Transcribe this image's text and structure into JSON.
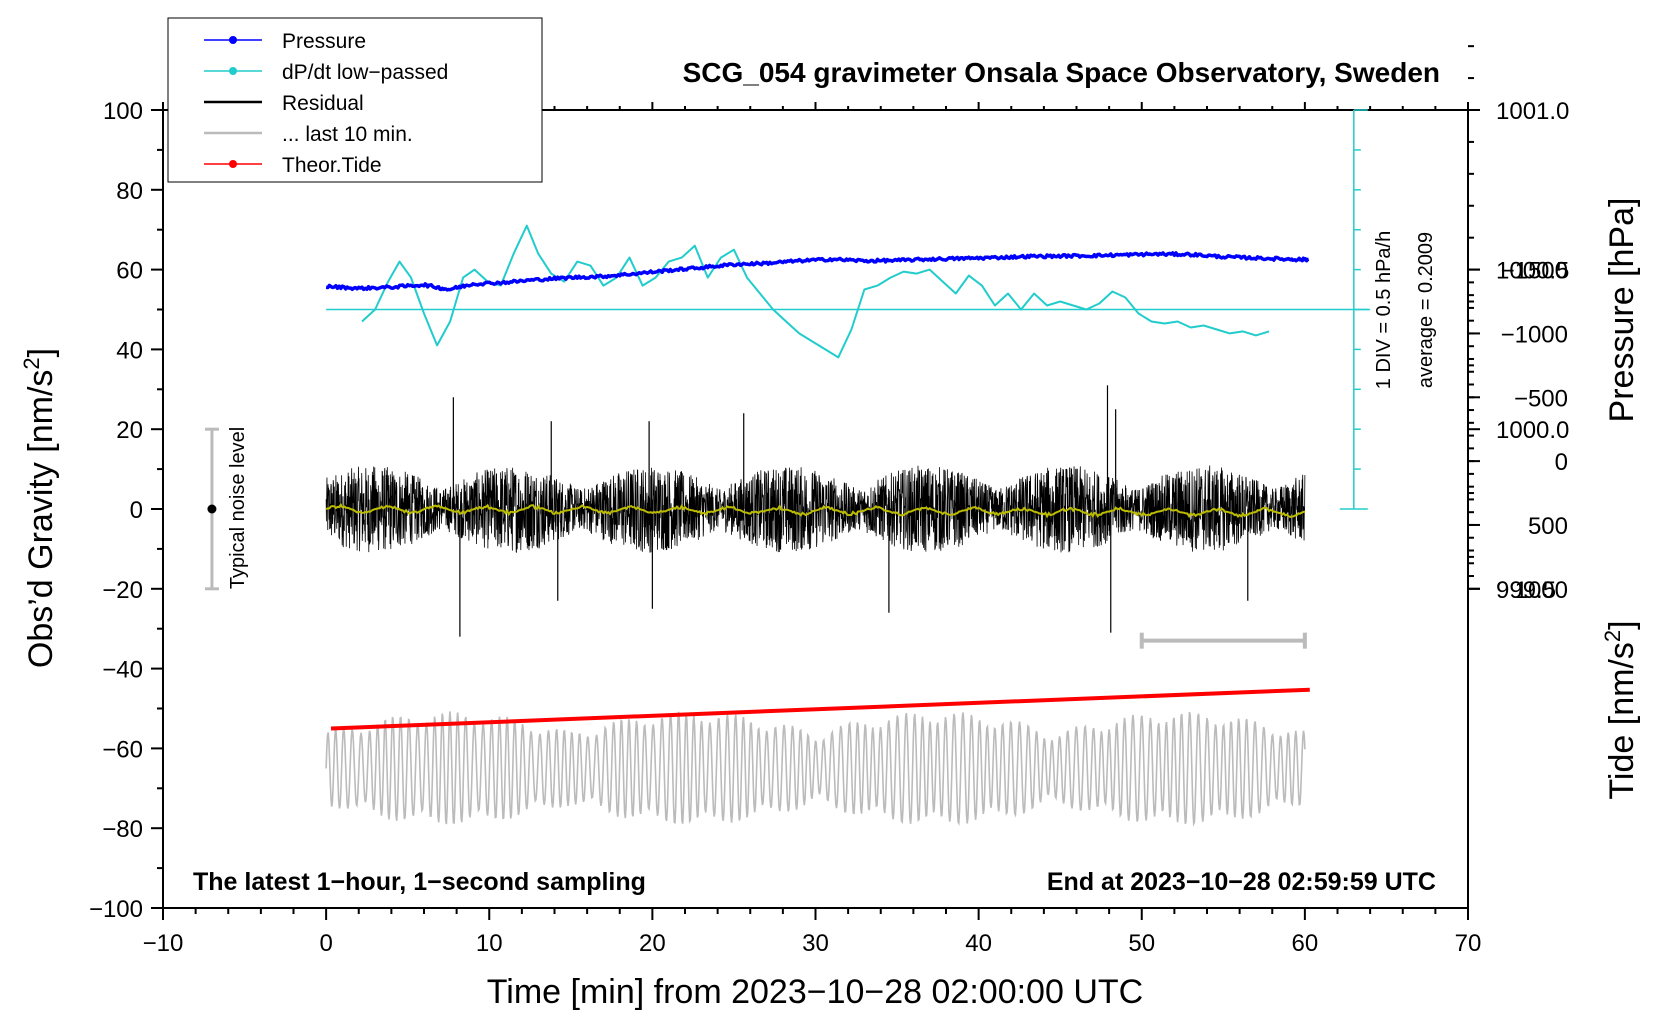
{
  "chart_data": {
    "type": "line",
    "title": "SCG_054 gravimeter Onsala Space Observatory, Sweden",
    "xlabel": "Time [min] from 2023−10−28 02:00:00 UTC",
    "ylabel_left": "Obs’d Gravity [nm/s",
    "ylabel_left_sup": "2",
    "ylabel_left_end": "]",
    "ylabel_right_top": "Pressure [hPa]",
    "ylabel_right_bottom": "Tide [nm/s",
    "ylabel_right_bottom_sup": "2",
    "ylabel_right_bottom_end": "]",
    "xlim": [
      -10,
      70
    ],
    "ylim": [
      -100,
      100
    ],
    "x_ticks": [
      -10,
      0,
      10,
      20,
      30,
      40,
      50,
      60,
      70
    ],
    "x_tick_labels": [
      "−10",
      "0",
      "10",
      "20",
      "30",
      "40",
      "50",
      "60",
      "70"
    ],
    "y_ticks": [
      -100,
      -80,
      -60,
      -40,
      -20,
      0,
      20,
      40,
      60,
      80,
      100
    ],
    "y_tick_labels": [
      "−100",
      "−80",
      "−60",
      "−40",
      "−20",
      "0",
      "20",
      "40",
      "60",
      "80",
      "100"
    ],
    "pressure_axis": {
      "ticks": [
        999.5,
        1000.0,
        1000.5,
        1001.0
      ],
      "tick_labels": [
        "999.5",
        "1000.0",
        "1000.5",
        "1001.0"
      ]
    },
    "tide_axis": {
      "ticks": [
        -1500,
        -1000,
        -500,
        0,
        500,
        1000
      ],
      "tick_labels": [
        "−1500",
        "−1000",
        "−500",
        "0",
        "500",
        "1000"
      ]
    },
    "legend": {
      "placement": "top-left",
      "entries": [
        {
          "label": "Pressure",
          "color": "#0000ff",
          "marker": true
        },
        {
          "label": "dP/dt low−passed",
          "color": "#22cccc",
          "marker": true
        },
        {
          "label": "Residual",
          "color": "#000000",
          "marker": false
        },
        {
          "label": "... last 10 min.",
          "color": "#bbbbbb",
          "marker": false
        },
        {
          "label": "Theor.Tide",
          "color": "#ff0000",
          "marker": true
        }
      ]
    },
    "annotations": {
      "bottom_left": "The latest 1−hour, 1−second sampling",
      "bottom_right": "End at 2023−10−28 02:59:59 UTC",
      "noise": "Typical noise level",
      "div": "1 DIV = 0.5 hPa/h",
      "average": "average = 0.2009"
    },
    "noise_bar": {
      "x": -7,
      "center": 0,
      "half_range": 20
    },
    "last10_bar": {
      "x_start": 50,
      "x_end": 60,
      "y": -33
    },
    "dpdt_scale": {
      "x": 63,
      "y_bottom": 0,
      "y_top": 100,
      "baseline_y": 50,
      "baseline_x_start": 0,
      "baseline_x_end": 64
    },
    "series": [
      {
        "name": "Pressure",
        "color": "#0000ff",
        "x": [
          0,
          2,
          4,
          6,
          7.5,
          9,
          11,
          13,
          15,
          17,
          19,
          21,
          23,
          25,
          27,
          29,
          31,
          33,
          35,
          37,
          39,
          41,
          43,
          45,
          47,
          49,
          51,
          53,
          55,
          57,
          59,
          60.3
        ],
        "y": [
          55.8,
          55.3,
          55.6,
          56.2,
          55.0,
          56.4,
          56.8,
          57.5,
          58.0,
          58.3,
          59.0,
          59.8,
          60.5,
          61.3,
          61.6,
          62.2,
          62.6,
          62.2,
          62.3,
          62.6,
          62.8,
          63.0,
          63.3,
          63.4,
          63.5,
          63.7,
          63.9,
          63.8,
          63.2,
          62.9,
          62.6,
          62.5
        ]
      },
      {
        "name": "dP/dt low−passed",
        "color": "#22cccc",
        "x": [
          2.2,
          3,
          3.8,
          4.5,
          5.2,
          6,
          6.8,
          7.6,
          8.4,
          9.1,
          9.9,
          10.7,
          11.5,
          12.3,
          13,
          13.8,
          14.6,
          15.4,
          16.2,
          17,
          17.8,
          18.6,
          19.4,
          20.2,
          21,
          21.8,
          22.6,
          23.4,
          24.2,
          25,
          25.8,
          26.6,
          27.4,
          28.2,
          29,
          29.8,
          30.6,
          31.4,
          32.2,
          33,
          33.8,
          34.6,
          35.4,
          36.2,
          37,
          37.8,
          38.6,
          39.4,
          40.2,
          41,
          41.8,
          42.6,
          43.4,
          44.2,
          45,
          45.8,
          46.6,
          47.4,
          48.2,
          49,
          49.8,
          50.6,
          51.4,
          52.2,
          53,
          53.8,
          54.6,
          55.4,
          56.2,
          57,
          57.8
        ],
        "y": [
          47,
          50,
          57,
          62,
          58,
          49,
          41,
          47,
          58,
          60,
          57,
          56,
          64,
          71,
          64,
          59,
          57,
          62,
          61,
          56,
          58,
          63,
          56,
          58,
          62,
          63,
          66,
          58,
          63,
          65,
          58,
          54,
          50,
          47,
          44,
          42,
          40,
          38,
          45,
          55,
          56,
          58,
          59.5,
          59,
          60,
          57,
          54,
          58.5,
          56,
          51,
          54,
          50,
          54,
          51,
          52,
          51,
          50,
          51.5,
          54.5,
          53,
          49,
          47,
          46.5,
          47,
          45.5,
          46,
          45,
          44,
          44.5,
          43.5,
          44.5
        ]
      },
      {
        "name": "Residual",
        "color": "#000000",
        "x_start": 0,
        "x_end": 60,
        "amplitude": 11,
        "bursts": [
          {
            "x": 7.8,
            "y": 28
          },
          {
            "x": 8.2,
            "y": -32
          },
          {
            "x": 13.8,
            "y": 22
          },
          {
            "x": 14.2,
            "y": -23
          },
          {
            "x": 20,
            "y": -25
          },
          {
            "x": 19.8,
            "y": 22
          },
          {
            "x": 25.6,
            "y": 24
          },
          {
            "x": 34.5,
            "y": -26
          },
          {
            "x": 47.9,
            "y": 31
          },
          {
            "x": 48.1,
            "y": -31
          },
          {
            "x": 48.4,
            "y": 25
          },
          {
            "x": 56.5,
            "y": -23
          }
        ]
      },
      {
        "name": "Residual mean",
        "color": "#bbbb00",
        "x_start": 0,
        "x_end": 60,
        "y": 0
      },
      {
        "name": "... last 10 min.",
        "color": "#bbbbbb",
        "x_start": 0,
        "x_end": 60,
        "center": -65,
        "amplitude": 11
      },
      {
        "name": "Theor.Tide",
        "color": "#ff0000",
        "x": [
          0.3,
          60.3
        ],
        "y": [
          -55,
          -45.3
        ]
      }
    ]
  }
}
